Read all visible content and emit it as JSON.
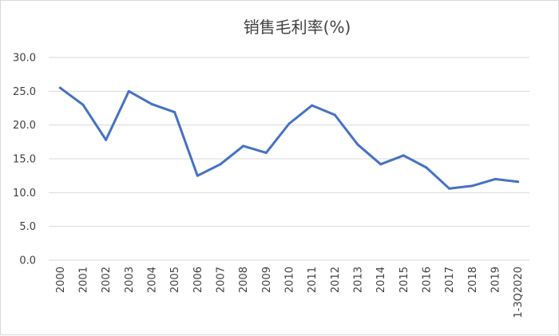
{
  "chart_data": {
    "type": "line",
    "title": "销售毛利率(%)",
    "xlabel": "",
    "ylabel": "",
    "categories": [
      "2000",
      "2001",
      "2002",
      "2003",
      "2004",
      "2005",
      "2006",
      "2007",
      "2008",
      "2009",
      "2010",
      "2011",
      "2012",
      "2013",
      "2014",
      "2015",
      "2016",
      "2017",
      "2018",
      "2019",
      "1-3Q2020"
    ],
    "series": [
      {
        "values": [
          25.5,
          23.0,
          17.8,
          25.0,
          23.1,
          21.9,
          12.5,
          14.2,
          16.9,
          15.9,
          20.2,
          22.9,
          21.5,
          17.1,
          14.2,
          15.5,
          13.7,
          10.6,
          11.0,
          12.0,
          11.6
        ]
      }
    ],
    "ylim": [
      0,
      30
    ],
    "yticks": [
      "0.0",
      "5.0",
      "10.0",
      "15.0",
      "20.0",
      "25.0",
      "30.0"
    ],
    "ytick_values": [
      0,
      5,
      10,
      15,
      20,
      25,
      30
    ],
    "grid": true,
    "legend": "none",
    "colors": {
      "line": "#4472c4",
      "grid": "#d9d9d9",
      "text": "#404040"
    }
  }
}
